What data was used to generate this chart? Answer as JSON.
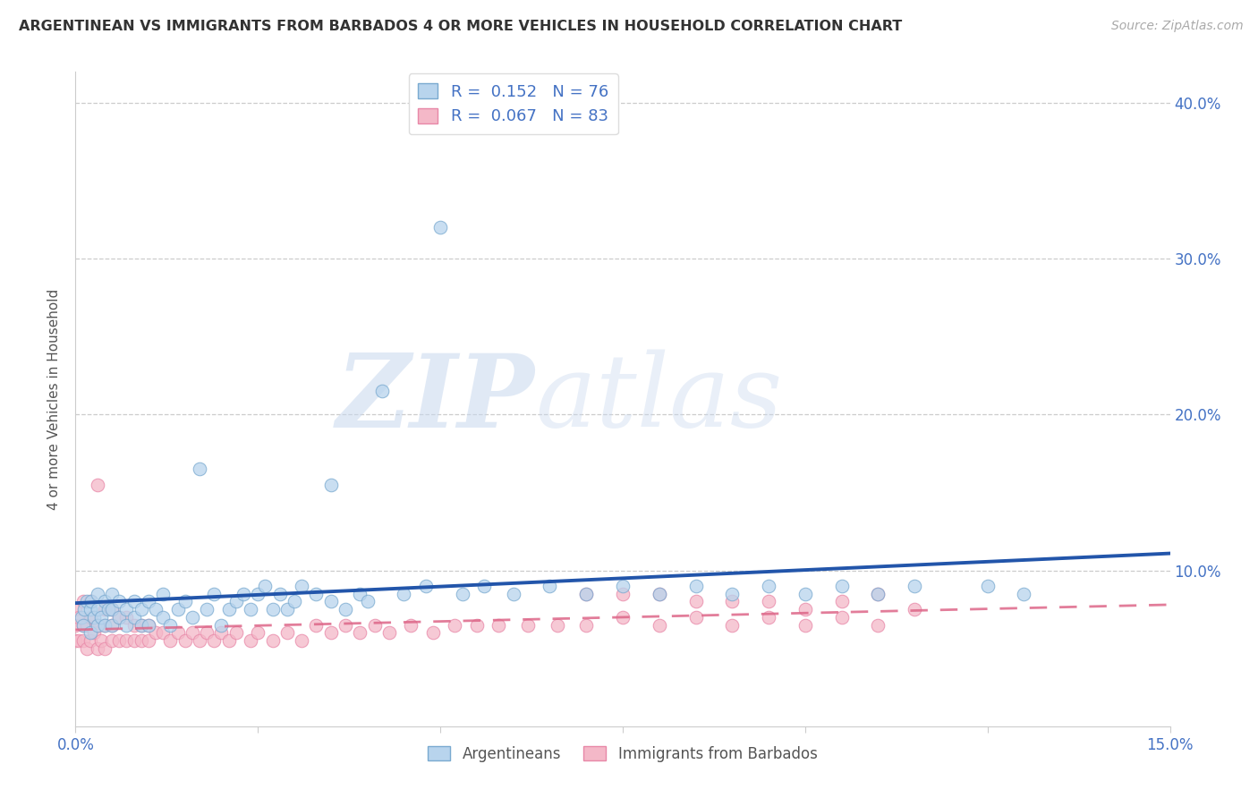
{
  "title": "ARGENTINEAN VS IMMIGRANTS FROM BARBADOS 4 OR MORE VEHICLES IN HOUSEHOLD CORRELATION CHART",
  "source": "Source: ZipAtlas.com",
  "ylabel": "4 or more Vehicles in Household",
  "legend_blue_r": "0.152",
  "legend_blue_n": "76",
  "legend_pink_r": "0.067",
  "legend_pink_n": "83",
  "legend_label_blue": "Argentineans",
  "legend_label_pink": "Immigrants from Barbados",
  "color_blue_fill": "#b8d4ed",
  "color_pink_fill": "#f4b8c8",
  "color_blue_edge": "#7aaad0",
  "color_pink_edge": "#e888a8",
  "color_blue_line": "#2255aa",
  "color_pink_line": "#dd6688",
  "watermark_zip": "ZIP",
  "watermark_atlas": "atlas",
  "xlim": [
    0.0,
    0.15
  ],
  "ylim": [
    0.0,
    0.42
  ],
  "y_tick_vals": [
    0.1,
    0.2,
    0.3,
    0.4
  ],
  "x_tick_positions": [
    0.0,
    0.025,
    0.05,
    0.075,
    0.1,
    0.125,
    0.15
  ],
  "blue_x": [
    0.0008,
    0.001,
    0.0012,
    0.0015,
    0.002,
    0.002,
    0.0022,
    0.0025,
    0.003,
    0.003,
    0.003,
    0.0035,
    0.004,
    0.004,
    0.0045,
    0.005,
    0.005,
    0.005,
    0.006,
    0.006,
    0.007,
    0.007,
    0.008,
    0.008,
    0.009,
    0.009,
    0.01,
    0.01,
    0.011,
    0.012,
    0.012,
    0.013,
    0.014,
    0.015,
    0.016,
    0.017,
    0.018,
    0.019,
    0.02,
    0.021,
    0.022,
    0.023,
    0.024,
    0.025,
    0.026,
    0.027,
    0.028,
    0.029,
    0.03,
    0.031,
    0.033,
    0.035,
    0.035,
    0.037,
    0.039,
    0.04,
    0.042,
    0.045,
    0.048,
    0.05,
    0.053,
    0.056,
    0.06,
    0.065,
    0.07,
    0.075,
    0.08,
    0.085,
    0.09,
    0.095,
    0.1,
    0.105,
    0.11,
    0.115,
    0.125,
    0.13
  ],
  "blue_y": [
    0.07,
    0.065,
    0.075,
    0.08,
    0.06,
    0.075,
    0.08,
    0.07,
    0.065,
    0.075,
    0.085,
    0.07,
    0.065,
    0.08,
    0.075,
    0.065,
    0.075,
    0.085,
    0.07,
    0.08,
    0.065,
    0.075,
    0.07,
    0.08,
    0.065,
    0.075,
    0.065,
    0.08,
    0.075,
    0.07,
    0.085,
    0.065,
    0.075,
    0.08,
    0.07,
    0.165,
    0.075,
    0.085,
    0.065,
    0.075,
    0.08,
    0.085,
    0.075,
    0.085,
    0.09,
    0.075,
    0.085,
    0.075,
    0.08,
    0.09,
    0.085,
    0.08,
    0.155,
    0.075,
    0.085,
    0.08,
    0.215,
    0.085,
    0.09,
    0.32,
    0.085,
    0.09,
    0.085,
    0.09,
    0.085,
    0.09,
    0.085,
    0.09,
    0.085,
    0.09,
    0.085,
    0.09,
    0.085,
    0.09,
    0.09,
    0.085
  ],
  "pink_x": [
    0.0,
    0.0,
    0.0,
    0.0005,
    0.0005,
    0.001,
    0.001,
    0.001,
    0.0015,
    0.0015,
    0.002,
    0.002,
    0.002,
    0.0025,
    0.003,
    0.003,
    0.003,
    0.0035,
    0.004,
    0.004,
    0.004,
    0.005,
    0.005,
    0.005,
    0.006,
    0.006,
    0.007,
    0.007,
    0.008,
    0.008,
    0.009,
    0.009,
    0.01,
    0.01,
    0.011,
    0.012,
    0.013,
    0.014,
    0.015,
    0.016,
    0.017,
    0.018,
    0.019,
    0.02,
    0.021,
    0.022,
    0.024,
    0.025,
    0.027,
    0.029,
    0.031,
    0.033,
    0.035,
    0.037,
    0.039,
    0.041,
    0.043,
    0.046,
    0.049,
    0.052,
    0.055,
    0.058,
    0.062,
    0.066,
    0.07,
    0.075,
    0.08,
    0.085,
    0.09,
    0.095,
    0.1,
    0.105,
    0.11,
    0.07,
    0.075,
    0.08,
    0.085,
    0.09,
    0.095,
    0.1,
    0.105,
    0.11,
    0.115
  ],
  "pink_y": [
    0.055,
    0.065,
    0.075,
    0.055,
    0.07,
    0.055,
    0.065,
    0.08,
    0.05,
    0.065,
    0.055,
    0.07,
    0.08,
    0.06,
    0.05,
    0.065,
    0.155,
    0.055,
    0.05,
    0.065,
    0.075,
    0.055,
    0.065,
    0.075,
    0.055,
    0.07,
    0.055,
    0.07,
    0.055,
    0.065,
    0.055,
    0.065,
    0.055,
    0.065,
    0.06,
    0.06,
    0.055,
    0.06,
    0.055,
    0.06,
    0.055,
    0.06,
    0.055,
    0.06,
    0.055,
    0.06,
    0.055,
    0.06,
    0.055,
    0.06,
    0.055,
    0.065,
    0.06,
    0.065,
    0.06,
    0.065,
    0.06,
    0.065,
    0.06,
    0.065,
    0.065,
    0.065,
    0.065,
    0.065,
    0.065,
    0.07,
    0.065,
    0.07,
    0.065,
    0.07,
    0.065,
    0.07,
    0.065,
    0.085,
    0.085,
    0.085,
    0.08,
    0.08,
    0.08,
    0.075,
    0.08,
    0.085,
    0.075
  ]
}
